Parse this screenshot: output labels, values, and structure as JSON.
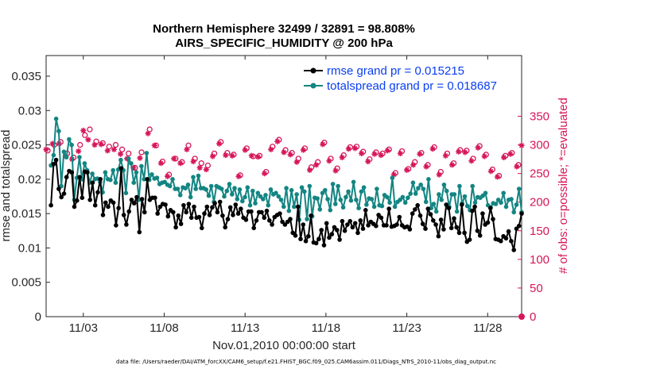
{
  "chart_data": {
    "type": "line",
    "title": "Northern Hemisphere 32499 / 32891 = 98.808%",
    "subtitle": "AIRS_SPECIFIC_HUMIDITY @ 200 hPa",
    "xlabel": "Nov.01,2010 00:00:00 start",
    "ylabel": "rmse and totalspread",
    "ylabel_right": "# of obs: o=possible; *=evaluated",
    "footnote": "data file: /Users/raeder/DAI/ATM_forcXX/CAM6_setup/f.e21.FHIST_BGC.f09_025.CAM6assim.011/Diags_NTrS_2010-11/obs_diag_output.nc",
    "xlim": [
      0.7,
      30.1
    ],
    "ylim": [
      0,
      0.038
    ],
    "ylim_right": [
      0,
      456
    ],
    "x_tick_labels": [
      "11/03",
      "11/08",
      "11/13",
      "11/18",
      "11/23",
      "11/28"
    ],
    "x_tick_positions": [
      3,
      8,
      13,
      18,
      23,
      28
    ],
    "y_ticks": [
      "0",
      "0.005",
      "0.01",
      "0.015",
      "0.02",
      "0.025",
      "0.03",
      "0.035"
    ],
    "y_tick_values": [
      0,
      0.005,
      0.01,
      0.015,
      0.02,
      0.025,
      0.03,
      0.035
    ],
    "y_ticks_right": [
      "0",
      "50",
      "100",
      "150",
      "200",
      "250",
      "300",
      "350"
    ],
    "y_tick_values_right": [
      0,
      50,
      100,
      150,
      200,
      250,
      300,
      350
    ],
    "colors": {
      "rmse": "#000000",
      "spread": "#138582",
      "obs": "#d6165a",
      "legend_text": "#0a3ef0"
    },
    "series": [
      {
        "name": "rmse grand pr = 0.015215",
        "key": "rmse",
        "values": [
          0.0162,
          0.0222,
          0.0228,
          0.0186,
          0.0174,
          0.0179,
          0.0203,
          0.0212,
          0.021,
          0.016,
          0.0169,
          0.0203,
          0.0173,
          0.0211,
          0.021,
          0.017,
          0.0195,
          0.0162,
          0.0181,
          0.02,
          0.0148,
          0.0166,
          0.016,
          0.0169,
          0.0166,
          0.0133,
          0.0158,
          0.0216,
          0.0148,
          0.0134,
          0.0153,
          0.017,
          0.0165,
          0.0174,
          0.0123,
          0.0171,
          0.0152,
          0.02,
          0.017,
          0.0173,
          0.0173,
          0.015,
          0.016,
          0.0164,
          0.0163,
          0.0146,
          0.0155,
          0.0152,
          0.013,
          0.0147,
          0.0135,
          0.0162,
          0.0152,
          0.0164,
          0.0144,
          0.016,
          0.0144,
          0.0145,
          0.0129,
          0.015,
          0.016,
          0.0148,
          0.0159,
          0.0165,
          0.0152,
          0.0167,
          0.0147,
          0.013,
          0.0142,
          0.0159,
          0.0148,
          0.0163,
          0.015,
          0.0157,
          0.0144,
          0.0141,
          0.0153,
          0.0153,
          0.0129,
          0.014,
          0.0152,
          0.0152,
          0.0144,
          0.0154,
          0.014,
          0.0134,
          0.0145,
          0.0148,
          0.015,
          0.0138,
          0.0134,
          0.0138,
          0.0142,
          0.0122,
          0.0118,
          0.016,
          0.0113,
          0.0134,
          0.011,
          0.0117,
          0.0147,
          0.0108,
          0.0107,
          0.0113,
          0.0126,
          0.0104,
          0.0136,
          0.0115,
          0.012,
          0.013,
          0.0126,
          0.0112,
          0.0139,
          0.0125,
          0.0134,
          0.0139,
          0.013,
          0.0136,
          0.0122,
          0.014,
          0.0128,
          0.0155,
          0.0133,
          0.0138,
          0.0135,
          0.0132,
          0.0148,
          0.0144,
          0.0133,
          0.0133,
          0.0157,
          0.0131,
          0.0132,
          0.0134,
          0.0145,
          0.0133,
          0.013,
          0.0131,
          0.0127,
          0.015,
          0.0156,
          0.0162,
          0.0147,
          0.0135,
          0.0128,
          0.0157,
          0.0149,
          0.014,
          0.0134,
          0.0117,
          0.0141,
          0.0127,
          0.0163,
          0.0158,
          0.0129,
          0.0143,
          0.013,
          0.0122,
          0.0163,
          0.0122,
          0.0109,
          0.0112,
          0.0154,
          0.016,
          0.0125,
          0.0118,
          0.015,
          0.0134,
          0.0137,
          0.0158,
          0.0142,
          0.0113,
          0.0112,
          0.011,
          0.0117,
          0.0114,
          0.0124,
          0.011,
          0.0097,
          0.0128,
          0.0132,
          0.015
        ]
      },
      {
        "name": "totalspread grand pr = 0.018687",
        "key": "spread",
        "values": [
          0.022,
          0.0235,
          0.0288,
          0.027,
          0.019,
          0.024,
          0.0232,
          0.0258,
          0.025,
          0.017,
          0.0202,
          0.0232,
          0.02,
          0.0223,
          0.0213,
          0.0195,
          0.0208,
          0.02,
          0.0201,
          0.0196,
          0.0181,
          0.021,
          0.02,
          0.0199,
          0.0213,
          0.0195,
          0.0214,
          0.0228,
          0.0213,
          0.018,
          0.023,
          0.0223,
          0.0195,
          0.021,
          0.017,
          0.0219,
          0.02,
          0.0238,
          0.0199,
          0.0207,
          0.0201,
          0.0202,
          0.0193,
          0.0195,
          0.0196,
          0.0192,
          0.019,
          0.02,
          0.0186,
          0.0186,
          0.0177,
          0.0188,
          0.0187,
          0.0192,
          0.0174,
          0.0203,
          0.0186,
          0.0205,
          0.0187,
          0.0187,
          0.0185,
          0.0176,
          0.019,
          0.0167,
          0.019,
          0.0188,
          0.0186,
          0.0175,
          0.0183,
          0.0193,
          0.0178,
          0.0187,
          0.0171,
          0.0185,
          0.0168,
          0.0174,
          0.0188,
          0.0162,
          0.0183,
          0.0165,
          0.018,
          0.0175,
          0.0171,
          0.0177,
          0.0162,
          0.0185,
          0.0178,
          0.018,
          0.0175,
          0.017,
          0.016,
          0.0187,
          0.0154,
          0.0184,
          0.016,
          0.0178,
          0.0141,
          0.0188,
          0.0182,
          0.0142,
          0.019,
          0.0146,
          0.0173,
          0.0172,
          0.0156,
          0.018,
          0.0184,
          0.0171,
          0.0155,
          0.0193,
          0.0164,
          0.019,
          0.017,
          0.0159,
          0.0174,
          0.0182,
          0.0169,
          0.0196,
          0.017,
          0.0158,
          0.0182,
          0.0188,
          0.0163,
          0.0172,
          0.0171,
          0.016,
          0.0186,
          0.0162,
          0.0161,
          0.0177,
          0.0174,
          0.0166,
          0.0202,
          0.016,
          0.0167,
          0.017,
          0.0174,
          0.0166,
          0.0173,
          0.0179,
          0.0195,
          0.0179,
          0.0187,
          0.0192,
          0.0186,
          0.0167,
          0.02,
          0.0158,
          0.0164,
          0.0153,
          0.0178,
          0.017,
          0.0192,
          0.0183,
          0.016,
          0.0178,
          0.0178,
          0.0153,
          0.019,
          0.0165,
          0.0175,
          0.0161,
          0.0155,
          0.019,
          0.0166,
          0.0174,
          0.0173,
          0.0176,
          0.018,
          0.0162,
          0.0159,
          0.0165,
          0.0164,
          0.017,
          0.0166,
          0.018,
          0.016,
          0.017,
          0.0171,
          0.0152,
          0.0163,
          0.0186,
          0.0152
        ]
      }
    ],
    "obs_possible": [
      [
        0.8,
        290
      ],
      [
        1.2,
        300
      ],
      [
        1.6,
        305
      ],
      [
        2.0,
        285
      ],
      [
        2.4,
        278
      ],
      [
        2.8,
        300
      ],
      [
        3.1,
        317
      ],
      [
        3.4,
        327
      ],
      [
        3.8,
        306
      ],
      [
        4.2,
        303
      ],
      [
        4.6,
        297
      ],
      [
        5.0,
        300
      ],
      [
        5.4,
        292
      ],
      [
        5.8,
        285
      ],
      [
        6.2,
        260
      ],
      [
        6.6,
        287
      ],
      [
        7.1,
        327
      ],
      [
        7.5,
        299
      ],
      [
        7.9,
        271
      ],
      [
        8.3,
        248
      ],
      [
        8.7,
        276
      ],
      [
        9.1,
        270
      ],
      [
        9.5,
        299
      ],
      [
        9.9,
        276
      ],
      [
        10.3,
        268
      ],
      [
        10.7,
        264
      ],
      [
        11.1,
        285
      ],
      [
        11.5,
        305
      ],
      [
        11.9,
        286
      ],
      [
        12.3,
        283
      ],
      [
        12.7,
        247
      ],
      [
        13.1,
        294
      ],
      [
        13.5,
        280
      ],
      [
        13.9,
        281
      ],
      [
        14.3,
        253
      ],
      [
        14.7,
        297
      ],
      [
        15.1,
        309
      ],
      [
        15.5,
        291
      ],
      [
        15.9,
        286
      ],
      [
        16.3,
        276
      ],
      [
        16.7,
        294
      ],
      [
        17.1,
        261
      ],
      [
        17.5,
        270
      ],
      [
        17.9,
        304
      ],
      [
        18.3,
        276
      ],
      [
        18.7,
        259
      ],
      [
        19.1,
        282
      ],
      [
        19.5,
        296
      ],
      [
        19.9,
        297
      ],
      [
        20.3,
        288
      ],
      [
        20.7,
        275
      ],
      [
        21.1,
        287
      ],
      [
        21.5,
        285
      ],
      [
        21.9,
        292
      ],
      [
        22.3,
        251
      ],
      [
        22.7,
        289
      ],
      [
        23.1,
        258
      ],
      [
        23.5,
        270
      ],
      [
        23.9,
        286
      ],
      [
        24.3,
        265
      ],
      [
        24.7,
        296
      ],
      [
        25.1,
        253
      ],
      [
        25.5,
        285
      ],
      [
        25.9,
        268
      ],
      [
        26.3,
        291
      ],
      [
        26.7,
        290
      ],
      [
        27.1,
        276
      ],
      [
        27.5,
        298
      ],
      [
        27.9,
        283
      ],
      [
        28.3,
        257
      ],
      [
        28.7,
        246
      ],
      [
        29.1,
        281
      ],
      [
        29.5,
        286
      ],
      [
        29.9,
        265
      ]
    ],
    "obs_evaluated": [
      [
        0.7,
        292
      ],
      [
        1.1,
        302
      ],
      [
        1.5,
        302
      ],
      [
        1.9,
        280
      ],
      [
        2.3,
        275
      ],
      [
        2.7,
        289
      ],
      [
        3.0,
        325
      ],
      [
        3.3,
        309
      ],
      [
        3.7,
        300
      ],
      [
        4.1,
        301
      ],
      [
        4.5,
        290
      ],
      [
        4.9,
        292
      ],
      [
        5.3,
        284
      ],
      [
        5.7,
        276
      ],
      [
        6.1,
        260
      ],
      [
        6.5,
        277
      ],
      [
        7.0,
        320
      ],
      [
        7.4,
        299
      ],
      [
        7.8,
        268
      ],
      [
        8.2,
        245
      ],
      [
        8.6,
        276
      ],
      [
        9.0,
        268
      ],
      [
        9.4,
        292
      ],
      [
        9.8,
        271
      ],
      [
        10.2,
        260
      ],
      [
        10.6,
        257
      ],
      [
        11.0,
        280
      ],
      [
        11.4,
        302
      ],
      [
        11.8,
        282
      ],
      [
        12.2,
        281
      ],
      [
        12.6,
        245
      ],
      [
        13.0,
        291
      ],
      [
        13.4,
        281
      ],
      [
        13.8,
        279
      ],
      [
        14.2,
        250
      ],
      [
        14.6,
        292
      ],
      [
        15.0,
        306
      ],
      [
        15.4,
        287
      ],
      [
        15.8,
        283
      ],
      [
        16.2,
        270
      ],
      [
        16.6,
        291
      ],
      [
        17.0,
        256
      ],
      [
        17.4,
        265
      ],
      [
        17.8,
        301
      ],
      [
        18.2,
        272
      ],
      [
        18.6,
        255
      ],
      [
        19.0,
        278
      ],
      [
        19.4,
        293
      ],
      [
        19.8,
        294
      ],
      [
        20.2,
        285
      ],
      [
        20.6,
        271
      ],
      [
        21.0,
        284
      ],
      [
        21.4,
        282
      ],
      [
        21.8,
        290
      ],
      [
        22.2,
        248
      ],
      [
        22.6,
        285
      ],
      [
        23.0,
        256
      ],
      [
        23.4,
        265
      ],
      [
        23.8,
        284
      ],
      [
        24.2,
        262
      ],
      [
        24.6,
        293
      ],
      [
        25.0,
        248
      ],
      [
        25.4,
        281
      ],
      [
        25.8,
        265
      ],
      [
        26.2,
        288
      ],
      [
        26.6,
        287
      ],
      [
        27.0,
        272
      ],
      [
        27.4,
        295
      ],
      [
        27.8,
        280
      ],
      [
        28.2,
        254
      ],
      [
        28.6,
        244
      ],
      [
        29.0,
        278
      ],
      [
        29.4,
        284
      ],
      [
        29.8,
        262
      ],
      [
        30.1,
        299
      ]
    ]
  }
}
